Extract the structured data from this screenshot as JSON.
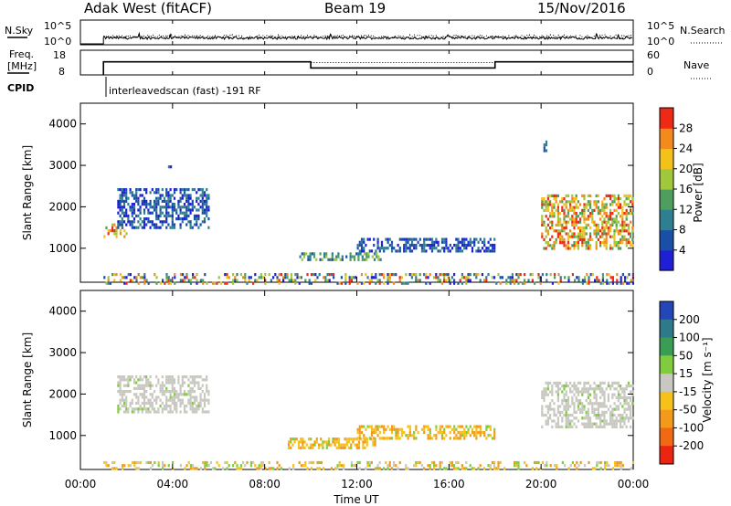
{
  "header": {
    "radar": "Adak West (fitACF)",
    "beam": "Beam 19",
    "date": "15/Nov/2016"
  },
  "panels": {
    "nsky": {
      "label": "N.Sky",
      "ticks_left": [
        "10^5",
        "10^0"
      ],
      "right_label": "N.Search",
      "ticks_right": [
        "10^5",
        "10^0"
      ]
    },
    "freq": {
      "label": "Freq.",
      "unit": "[MHz]",
      "ticks_left": [
        "18",
        "8"
      ],
      "right_label": "Nave",
      "ticks_right": [
        "60",
        "0"
      ],
      "steps": [
        {
          "t": 0.0,
          "freq": null
        },
        {
          "t": 1.0,
          "freq": 13.3,
          "nave": 32
        },
        {
          "t": 10.0,
          "freq": 10.8,
          "nave": 30
        },
        {
          "t": 18.0,
          "freq": 13.3,
          "nave": 32
        },
        {
          "t": 24.0,
          "freq": 13.3,
          "nave": 32
        }
      ]
    },
    "cpid": {
      "label": "CPID",
      "value": "interleavedscan (fast) -191 RF",
      "start_hour": 1.0
    }
  },
  "chart_data": [
    {
      "type": "heatmap",
      "panel": "power",
      "ylabel": "Slant Range [km]",
      "xlabel": "",
      "xlim": [
        0,
        24
      ],
      "ylim": [
        180,
        4500
      ],
      "yticks": [
        "1000",
        "2000",
        "3000",
        "4000"
      ],
      "colorbar": {
        "label": "Power [dB]",
        "ticks": [
          "4",
          "8",
          "12",
          "16",
          "20",
          "24",
          "28"
        ],
        "colors": [
          "#1f1fd6",
          "#1a4fa8",
          "#2d7f91",
          "#4e9e5e",
          "#9fc93a",
          "#f2c21b",
          "#f38a1c",
          "#ee2a16"
        ]
      },
      "patches": [
        {
          "t0": 1.0,
          "t1": 2.0,
          "r0": 1280,
          "r1": 1600,
          "level": "high"
        },
        {
          "t0": 1.6,
          "t1": 5.6,
          "r0": 1500,
          "r1": 2450,
          "level": "low"
        },
        {
          "t0": 3.8,
          "t1": 4.0,
          "r0": 2950,
          "r1": 3000,
          "level": "low"
        },
        {
          "t0": 9.5,
          "t1": 13.0,
          "r0": 700,
          "r1": 900,
          "level": "mid"
        },
        {
          "t0": 12.0,
          "t1": 18.0,
          "r0": 900,
          "r1": 1250,
          "level": "low"
        },
        {
          "t0": 20.0,
          "t1": 24.0,
          "r0": 1000,
          "r1": 2300,
          "level": "high"
        },
        {
          "t0": 20.1,
          "t1": 20.2,
          "r0": 3300,
          "r1": 3600,
          "level": "low"
        },
        {
          "t0": 1.0,
          "t1": 24.0,
          "r0": 180,
          "r1": 400,
          "level": "mixed"
        }
      ]
    },
    {
      "type": "heatmap",
      "panel": "velocity",
      "ylabel": "Slant Range [km]",
      "xlabel": "Time UT",
      "xlim": [
        0,
        24
      ],
      "ylim": [
        180,
        4500
      ],
      "xticks": [
        "00:00",
        "04:00",
        "08:00",
        "12:00",
        "16:00",
        "20:00",
        "00:00"
      ],
      "yticks": [
        "1000",
        "2000",
        "3000",
        "4000"
      ],
      "colorbar": {
        "label": "Velocity [m s⁻¹]",
        "ticks": [
          "200",
          "100",
          "50",
          "15",
          "-15",
          "-50",
          "-100",
          "-200"
        ],
        "colors": [
          "#2346b8",
          "#2f7a8a",
          "#3a9d54",
          "#7fcc3c",
          "#c8c8c0",
          "#f6c21a",
          "#f39a1a",
          "#f26914",
          "#ec2512"
        ]
      },
      "patches": [
        {
          "t0": 1.6,
          "t1": 5.6,
          "r0": 1550,
          "r1": 2450,
          "level": "ground"
        },
        {
          "t0": 9.0,
          "t1": 12.8,
          "r0": 700,
          "r1": 950,
          "level": "neg"
        },
        {
          "t0": 12.0,
          "t1": 18.0,
          "r0": 900,
          "r1": 1250,
          "level": "neg"
        },
        {
          "t0": 20.0,
          "t1": 24.0,
          "r0": 1200,
          "r1": 2300,
          "level": "ground"
        },
        {
          "t0": 1.0,
          "t1": 24.0,
          "r0": 180,
          "r1": 380,
          "level": "neg-mixed"
        }
      ]
    }
  ]
}
